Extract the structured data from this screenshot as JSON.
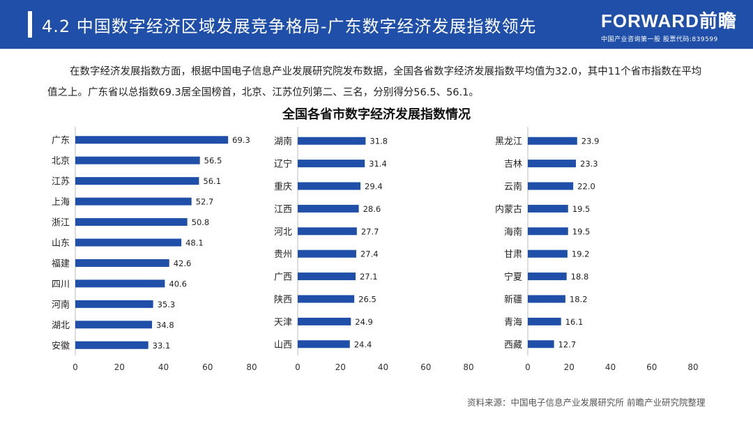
{
  "header": {
    "title": "4.2 中国数字经济区域发展竞争格局-广东数字经济发展指数领先",
    "logo_text": "FORWARD前瞻",
    "logo_sub": "中国产业咨询第一股 股票代码:839599"
  },
  "intro": {
    "text": "在数字经济发展指数方面，根据中国电子信息产业发展研究院发布数据，全国各省数字经济发展指数平均值为32.0，其中11个省市指数在平均值之上。广东省以总指数69.3居全国榜首，北京、江苏位列第二、三名，分别得分56.5、56.1。"
  },
  "colors": {
    "header_bg": "#1f4fa8",
    "bar": "#1f4fa8"
  },
  "chart_data": {
    "type": "bar",
    "orientation": "horizontal",
    "title": "全国各省市数字经济发展指数情况",
    "xlim": [
      0,
      80
    ],
    "xticks": [
      0,
      20,
      40,
      60,
      80
    ],
    "panels": [
      {
        "categories": [
          "广东",
          "北京",
          "江苏",
          "上海",
          "浙江",
          "山东",
          "福建",
          "四川",
          "河南",
          "湖北",
          "安徽"
        ],
        "values": [
          69.3,
          56.5,
          56.1,
          52.7,
          50.8,
          48.1,
          42.6,
          40.6,
          35.3,
          34.8,
          33.1
        ]
      },
      {
        "categories": [
          "湖南",
          "辽宁",
          "重庆",
          "江西",
          "河北",
          "贵州",
          "广西",
          "陕西",
          "天津",
          "山西"
        ],
        "values": [
          31.8,
          31.4,
          29.4,
          28.6,
          27.7,
          27.4,
          27.1,
          26.5,
          24.9,
          24.4
        ]
      },
      {
        "categories": [
          "黑龙江",
          "吉林",
          "云南",
          "内蒙古",
          "海南",
          "甘肃",
          "宁夏",
          "新疆",
          "青海",
          "西藏"
        ],
        "values": [
          23.9,
          23.3,
          22.0,
          19.5,
          19.5,
          19.2,
          18.8,
          18.2,
          16.1,
          12.7
        ]
      }
    ]
  },
  "source": {
    "text": "资料来源：中国电子信息产业发展研究所 前瞻产业研究院整理"
  }
}
